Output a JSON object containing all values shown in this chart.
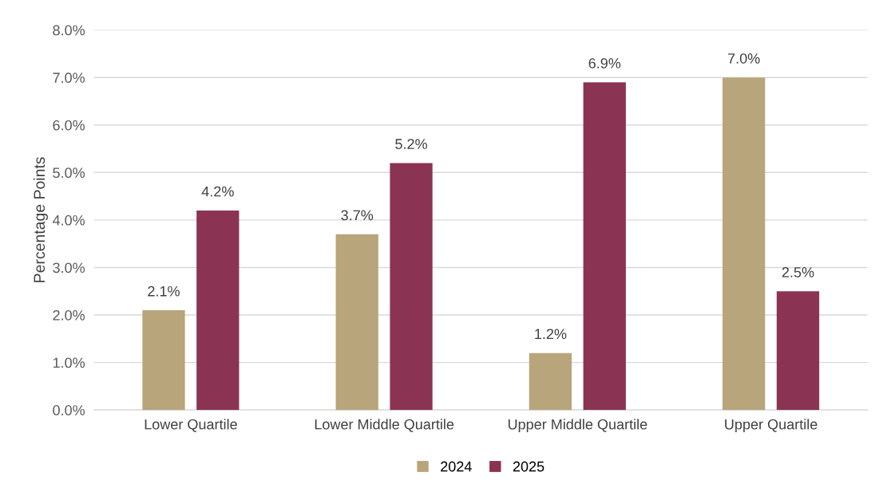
{
  "chart_data": {
    "type": "bar",
    "ylabel": "Percentage Points",
    "categories": [
      "Lower Quartile",
      "Lower Middle Quartile",
      "Upper Middle Quartile",
      "Upper Quartile"
    ],
    "series": [
      {
        "name": "2024",
        "color": "#b9a57b",
        "values": [
          2.1,
          3.7,
          1.2,
          7.0
        ],
        "value_labels": [
          "2.1%",
          "3.7%",
          "1.2%",
          "7.0%"
        ]
      },
      {
        "name": "2025",
        "color": "#8b3353",
        "values": [
          4.2,
          5.2,
          6.9,
          2.5
        ],
        "value_labels": [
          "4.2%",
          "5.2%",
          "6.9%",
          "2.5%"
        ]
      }
    ],
    "ylim": [
      0,
      8
    ],
    "yticks": [
      {
        "value": 0,
        "label": "0.0%"
      },
      {
        "value": 1,
        "label": "1.0%"
      },
      {
        "value": 2,
        "label": "2.0%"
      },
      {
        "value": 3,
        "label": "3.0%"
      },
      {
        "value": 4,
        "label": "4.0%"
      },
      {
        "value": 5,
        "label": "5.0%"
      },
      {
        "value": 6,
        "label": "6.0%"
      },
      {
        "value": 7,
        "label": "7.0%"
      },
      {
        "value": 8,
        "label": "8.0%"
      }
    ],
    "grid": "y",
    "legend": "bottom"
  }
}
